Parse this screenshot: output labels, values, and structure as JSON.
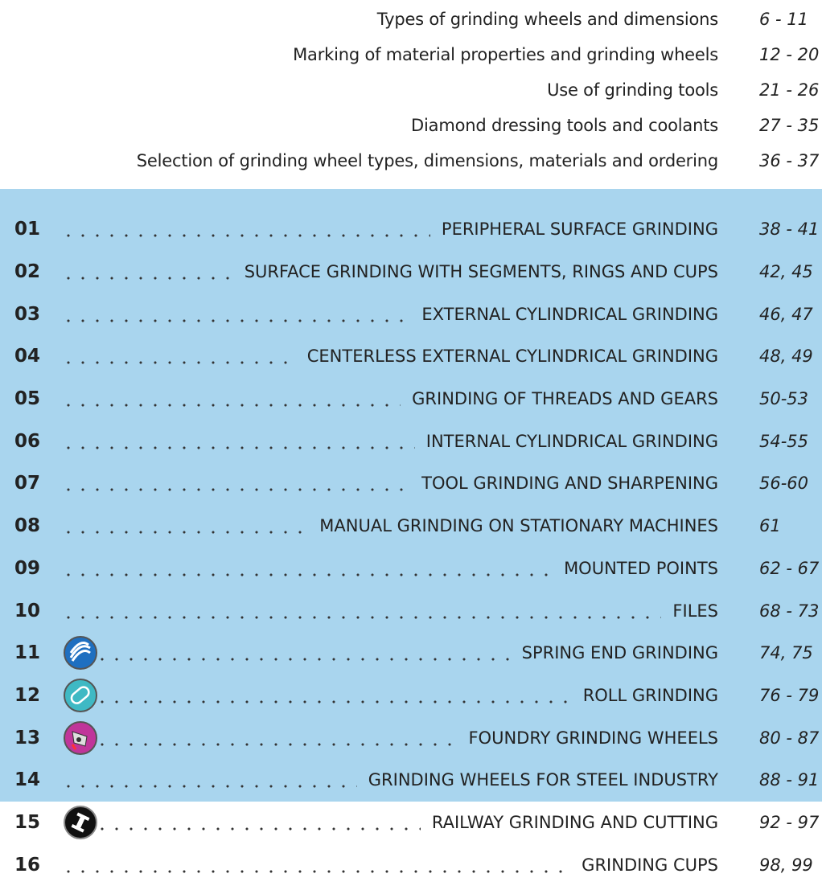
{
  "header_items": [
    {
      "title": "Types of grinding wheels and dimensions",
      "pages": "6 - 11"
    },
    {
      "title": "Marking of material properties and grinding wheels",
      "pages": "12 - 20"
    },
    {
      "title": "Use of grinding tools",
      "pages": "21 - 26"
    },
    {
      "title": "Diamond dressing tools and coolants",
      "pages": "27 - 35"
    },
    {
      "title": "Selection of grinding wheel types, dimensions, materials and ordering",
      "pages": "36 - 37"
    }
  ],
  "sections": [
    {
      "number": "01",
      "title": "PERIPHERAL SURFACE GRINDING",
      "pages": "38 - 41"
    },
    {
      "number": "02",
      "title": "SURFACE GRINDING WITH SEGMENTS, RINGS AND CUPS",
      "pages": "42, 45"
    },
    {
      "number": "03",
      "title": "EXTERNAL CYLINDRICAL GRINDING",
      "pages": "46, 47"
    },
    {
      "number": "04",
      "title": "CENTERLESS EXTERNAL CYLINDRICAL GRINDING",
      "pages": "48, 49"
    },
    {
      "number": "05",
      "title": "GRINDING OF THREADS AND GEARS",
      "pages": "50-53"
    },
    {
      "number": "06",
      "title": "INTERNAL CYLINDRICAL GRINDING",
      "pages": "54-55"
    },
    {
      "number": "07",
      "title": "TOOL GRINDING AND SHARPENING",
      "pages": "56-60"
    },
    {
      "number": "08",
      "title": "MANUAL GRINDING ON STATIONARY MACHINES",
      "pages": "61"
    },
    {
      "number": "09",
      "title": "MOUNTED POINTS",
      "pages": "62 - 67"
    },
    {
      "number": "10",
      "title": "FILES",
      "pages": "68 - 73"
    },
    {
      "number": "11",
      "title": "SPRING END GRINDING",
      "pages": "74, 75"
    },
    {
      "number": "12",
      "title": "ROLL GRINDING",
      "pages": "76 - 79"
    },
    {
      "number": "13",
      "title": "FOUNDRY GRINDING WHEELS",
      "pages": "80 - 87"
    },
    {
      "number": "14",
      "title": "GRINDING WHEELS FOR STEEL INDUSTRY",
      "pages": "88 - 91"
    },
    {
      "number": "15",
      "title": "RAILWAY GRINDING AND CUTTING",
      "pages": "92 - 97"
    },
    {
      "number": "16",
      "title": "GRINDING CUPS",
      "pages": "98, 99"
    }
  ]
}
